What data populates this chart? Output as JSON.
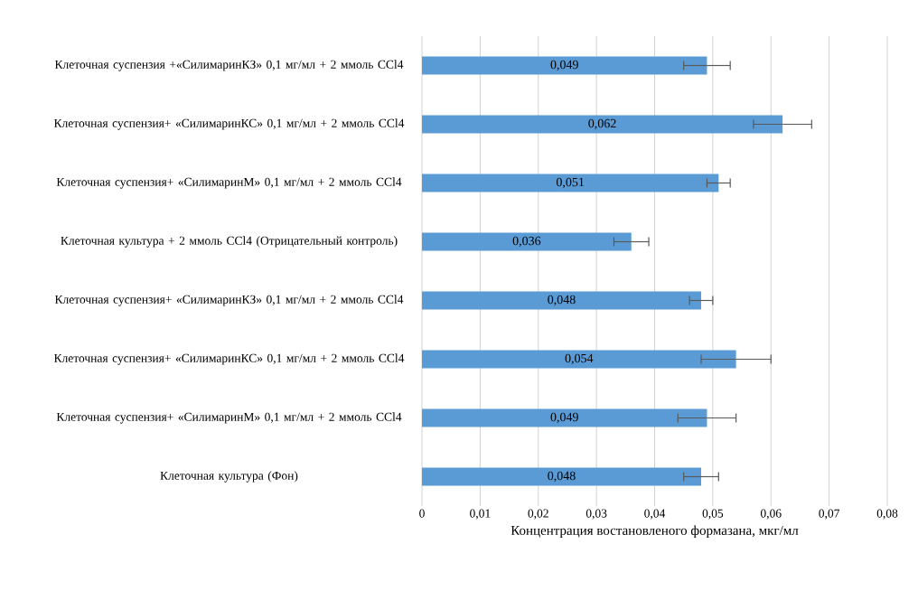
{
  "chart_data": {
    "type": "bar",
    "orientation": "horizontal",
    "categories": [
      "Клеточная суспензия +«СилимаринКЗ» 0,1 мг/мл + 2 ммоль CCl4",
      "Клеточная суспензия+ «СилимаринКС» 0,1 мг/мл + 2 ммоль CCl4",
      "Клеточная суспензия+ «СилимаринМ» 0,1 мг/мл + 2 ммоль CCl4",
      "Клеточная культура + 2 ммоль CCl4 (Отрицательный контроль)",
      "Клеточная суспензия+ «СилимаринКЗ» 0,1 мг/мл + 2 ммоль CCl4",
      "Клеточная суспензия+ «СилимаринКС» 0,1 мг/мл + 2 ммоль CCl4",
      "Клеточная суспензия+ «СилимаринМ» 0,1 мг/мл + 2 ммоль CCl4",
      "Клеточная культура (Фон)"
    ],
    "values": [
      0.049,
      0.062,
      0.051,
      0.036,
      0.048,
      0.054,
      0.049,
      0.048
    ],
    "errors": [
      0.004,
      0.005,
      0.002,
      0.003,
      0.002,
      0.006,
      0.005,
      0.003
    ],
    "value_labels": [
      "0,049",
      "0,062",
      "0,051",
      "0,036",
      "0,048",
      "0,054",
      "0,049",
      "0,048"
    ],
    "color": "#5b9bd5",
    "xlabel": "Концентрация востановленого формазана, мкг/мл",
    "xlim": [
      0,
      0.08
    ],
    "xticks": [
      0,
      {
        "value": 0.01,
        "label": "0,01"
      },
      {
        "value": 0.02,
        "label": "0,02"
      },
      {
        "value": 0.03,
        "label": "0,03"
      },
      {
        "value": 0.04,
        "label": "0,04"
      },
      {
        "value": 0.05,
        "label": "0,05"
      },
      {
        "value": 0.06,
        "label": "0,06"
      },
      {
        "value": 0.07,
        "label": "0,07"
      },
      {
        "value": 0.08,
        "label": "0,08"
      }
    ],
    "grid": "x"
  }
}
